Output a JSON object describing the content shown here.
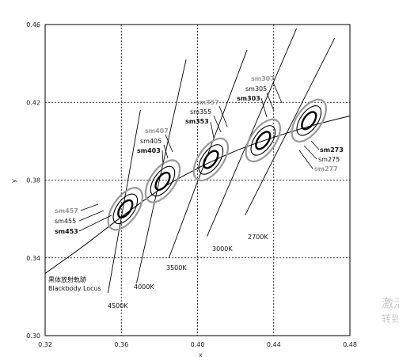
{
  "chart_data": {
    "type": "scatter",
    "xlabel": "x",
    "ylabel": "y",
    "xlim": [
      0.32,
      0.48
    ],
    "ylim": [
      0.3,
      0.46
    ],
    "xticks": [
      "0.32",
      "0.36",
      "0.40",
      "0.44",
      "0.48"
    ],
    "yticks": [
      "0.30",
      "0.34",
      "0.38",
      "0.42",
      "0.46"
    ],
    "grid": true,
    "locus_label_ja": "黒体放射軌跡",
    "locus_label_en": "Blackbody Locus",
    "locus": [
      {
        "x": 0.32,
        "y": 0.332
      },
      {
        "x": 0.34,
        "y": 0.346
      },
      {
        "x": 0.36,
        "y": 0.361
      },
      {
        "x": 0.38,
        "y": 0.375
      },
      {
        "x": 0.4,
        "y": 0.386
      },
      {
        "x": 0.42,
        "y": 0.395
      },
      {
        "x": 0.44,
        "y": 0.402
      },
      {
        "x": 0.46,
        "y": 0.408
      },
      {
        "x": 0.48,
        "y": 0.413
      }
    ],
    "cct_lines": [
      {
        "label": "4500K",
        "from": {
          "x": 0.353,
          "y": 0.322
        },
        "to": {
          "x": 0.37,
          "y": 0.416
        }
      },
      {
        "label": "4000K",
        "from": {
          "x": 0.368,
          "y": 0.327
        },
        "to": {
          "x": 0.394,
          "y": 0.442
        }
      },
      {
        "label": "3500K",
        "from": {
          "x": 0.385,
          "y": 0.34
        },
        "to": {
          "x": 0.426,
          "y": 0.447
        }
      },
      {
        "label": "3000K",
        "from": {
          "x": 0.405,
          "y": 0.351
        },
        "to": {
          "x": 0.452,
          "y": 0.458
        }
      },
      {
        "label": "2700K",
        "from": {
          "x": 0.425,
          "y": 0.362
        },
        "to": {
          "x": 0.472,
          "y": 0.453
        }
      }
    ],
    "ellipse_groups": [
      {
        "center": {
          "x": 0.3621,
          "y": 0.3652
        },
        "labels": [
          "sm457",
          "sm455",
          "sm453"
        ]
      },
      {
        "center": {
          "x": 0.3817,
          "y": 0.3794
        },
        "labels": [
          "sm407",
          "sm405",
          "sm403"
        ]
      },
      {
        "center": {
          "x": 0.407,
          "y": 0.3906
        },
        "labels": [
          "sm357",
          "sm355",
          "sm353"
        ]
      },
      {
        "center": {
          "x": 0.4344,
          "y": 0.4004
        },
        "labels": [
          "sm307",
          "sm305",
          "sm303"
        ]
      },
      {
        "center": {
          "x": 0.4585,
          "y": 0.4106
        },
        "labels": [
          "sm273",
          "sm275",
          "sm277"
        ]
      }
    ]
  },
  "colors": {
    "step3": "#000000",
    "step5": "#000000",
    "step7": "#9a9a9a",
    "grid": "#000000"
  },
  "watermark": {
    "line1": "激活",
    "line2": "转到"
  }
}
